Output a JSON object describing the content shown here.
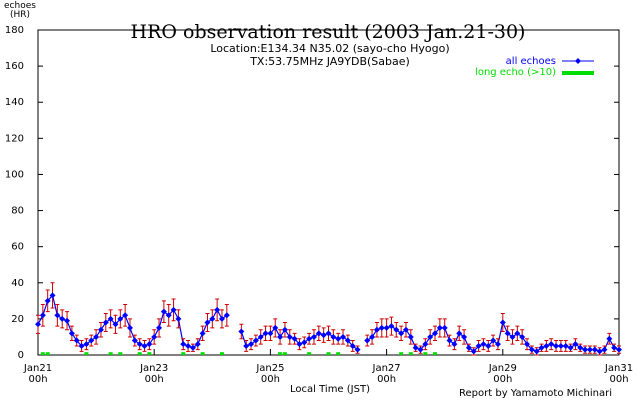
{
  "chart_data": {
    "type": "line",
    "title": "HRO observation result (2003 Jan.21-30)",
    "subtitle": [
      "Location:E134.34 N35.02 (sayo-cho Hyogo)",
      "TX:53.75MHz JA9YDB(Sabae)"
    ],
    "y_label": "echoes\n(HR)",
    "x_label": "Local Time (JST)",
    "annotation": "Report by Yamamoto Michinari",
    "xlim": [
      0,
      240
    ],
    "ylim": [
      0,
      180
    ],
    "xticks": [
      {
        "value": 0,
        "label": "Jan21\n00h"
      },
      {
        "value": 48,
        "label": "Jan23\n00h"
      },
      {
        "value": 96,
        "label": "Jan25\n00h"
      },
      {
        "value": 144,
        "label": "Jan27\n00h"
      },
      {
        "value": 192,
        "label": "Jan29\n00h"
      },
      {
        "value": 240,
        "label": "Jan31\n00h"
      }
    ],
    "yticks": [
      0,
      20,
      40,
      60,
      80,
      100,
      120,
      140,
      160,
      180
    ],
    "legend": "top-right",
    "x": [
      0,
      2,
      4,
      6,
      8,
      10,
      12,
      14,
      16,
      18,
      20,
      22,
      24,
      26,
      28,
      30,
      32,
      34,
      36,
      38,
      40,
      42,
      44,
      46,
      48,
      50,
      52,
      54,
      56,
      58,
      60,
      62,
      64,
      66,
      68,
      70,
      72,
      74,
      76,
      78,
      80,
      82,
      84,
      86,
      88,
      90,
      92,
      94,
      96,
      98,
      100,
      102,
      104,
      106,
      108,
      110,
      112,
      114,
      116,
      118,
      120,
      122,
      124,
      126,
      128,
      130,
      132,
      134,
      136,
      138,
      140,
      142,
      144,
      146,
      148,
      150,
      152,
      154,
      156,
      158,
      160,
      162,
      164,
      166,
      168,
      170,
      172,
      174,
      176,
      178,
      180,
      182,
      184,
      186,
      188,
      190,
      192,
      194,
      196,
      198,
      200,
      202,
      204,
      206,
      208,
      210,
      212,
      214,
      216,
      218,
      220,
      222,
      224,
      226,
      228,
      230,
      232,
      234,
      236,
      238,
      240
    ],
    "series": [
      {
        "name": "all echoes",
        "color": "#0000ff",
        "error_color": "#cc0000",
        "values": [
          17,
          22,
          30,
          33,
          22,
          20,
          19,
          12,
          8,
          5,
          6,
          8,
          10,
          14,
          18,
          20,
          17,
          20,
          22,
          15,
          8,
          6,
          5,
          6,
          10,
          15,
          24,
          22,
          25,
          20,
          6,
          5,
          4,
          6,
          12,
          18,
          20,
          25,
          20,
          22,
          null,
          null,
          13,
          5,
          6,
          8,
          10,
          12,
          12,
          15,
          10,
          14,
          10,
          9,
          6,
          7,
          9,
          10,
          12,
          11,
          12,
          10,
          9,
          10,
          8,
          5,
          3,
          null,
          8,
          10,
          14,
          15,
          15,
          16,
          14,
          12,
          14,
          10,
          4,
          3,
          6,
          10,
          12,
          15,
          15,
          8,
          6,
          12,
          10,
          4,
          2,
          5,
          6,
          5,
          8,
          6,
          18,
          12,
          10,
          12,
          10,
          6,
          3,
          2,
          4,
          5,
          6,
          5,
          5,
          5,
          4,
          6,
          4,
          3,
          3,
          3,
          2,
          3,
          9,
          4,
          3
        ],
        "errors": [
          5,
          6,
          6,
          7,
          6,
          5,
          5,
          4,
          3,
          3,
          3,
          3,
          4,
          4,
          5,
          5,
          5,
          5,
          6,
          5,
          3,
          3,
          3,
          3,
          4,
          5,
          6,
          6,
          6,
          5,
          3,
          3,
          2,
          3,
          4,
          5,
          5,
          6,
          5,
          6,
          null,
          null,
          4,
          3,
          3,
          3,
          4,
          4,
          4,
          5,
          4,
          4,
          4,
          3,
          3,
          3,
          3,
          4,
          4,
          4,
          4,
          4,
          3,
          4,
          3,
          3,
          2,
          null,
          3,
          4,
          4,
          5,
          5,
          5,
          4,
          4,
          4,
          4,
          2,
          2,
          3,
          4,
          4,
          5,
          5,
          3,
          3,
          4,
          4,
          2,
          2,
          3,
          3,
          3,
          3,
          3,
          5,
          4,
          4,
          4,
          4,
          3,
          2,
          2,
          2,
          3,
          3,
          3,
          3,
          3,
          2,
          3,
          2,
          2,
          2,
          2,
          2,
          2,
          3,
          2,
          2
        ]
      },
      {
        "name": "long echo (>10)",
        "color": "#00dd00",
        "x": [
          2,
          4,
          20,
          30,
          34,
          42,
          46,
          60,
          68,
          76,
          100,
          102,
          112,
          120,
          124,
          150,
          154,
          160,
          164
        ],
        "values": [
          1,
          1,
          1,
          1,
          1,
          1,
          1,
          1,
          1,
          1,
          1,
          1,
          1,
          1,
          1,
          1,
          1,
          1,
          1
        ]
      }
    ]
  }
}
